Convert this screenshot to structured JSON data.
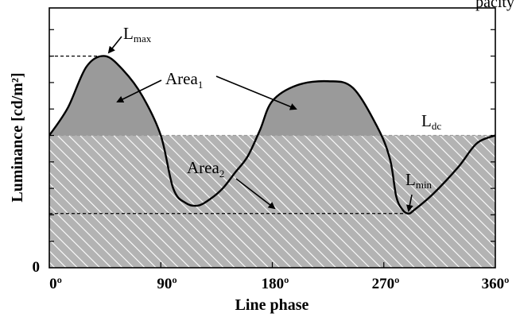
{
  "chart_data": {
    "type": "area",
    "title": "",
    "clipped_title_fragment": "pacity",
    "xlabel": "Line phase",
    "ylabel": "Luminance [cd/m²]",
    "xlim": [
      0,
      360
    ],
    "ylim": [
      0,
      10
    ],
    "x_ticks": [
      "0º",
      "90º",
      "180º",
      "270º",
      "360º"
    ],
    "y_tick_labels": [
      "0"
    ],
    "grid": false,
    "series": [
      {
        "x": [
          0,
          15,
          30,
          45,
          60,
          75,
          90,
          100,
          110,
          120,
          130,
          140,
          150,
          160,
          170,
          180,
          200,
          225,
          245,
          265,
          275,
          280,
          285,
          290,
          295,
          310,
          330,
          345,
          360
        ],
        "y": [
          5.0,
          6.05,
          7.6,
          8.0,
          7.45,
          6.5,
          5.0,
          3.0,
          2.45,
          2.35,
          2.6,
          3.0,
          3.6,
          4.2,
          5.2,
          6.3,
          6.9,
          7.05,
          6.8,
          5.3,
          4.1,
          2.7,
          2.2,
          2.05,
          2.2,
          2.8,
          3.8,
          4.7,
          5.0
        ]
      }
    ],
    "levels": {
      "L_max": 8.0,
      "L_dc": 5.0,
      "L_min": 2.05
    },
    "annotations": {
      "l_max": {
        "main": "L",
        "sub": "max"
      },
      "l_dc": {
        "main": "L",
        "sub": "dc"
      },
      "l_min": {
        "main": "L",
        "sub": "min"
      },
      "area1": {
        "main": "Area",
        "sub": "1"
      },
      "area2": {
        "main": "Area",
        "sub": "2"
      }
    },
    "colors": {
      "area_above_dc": "#9a9a9a",
      "hatch_background": "#b3b3b3",
      "hatch_lines": "#ffffff",
      "dc_line": "#9a9a9a",
      "curve": "#000000"
    }
  }
}
